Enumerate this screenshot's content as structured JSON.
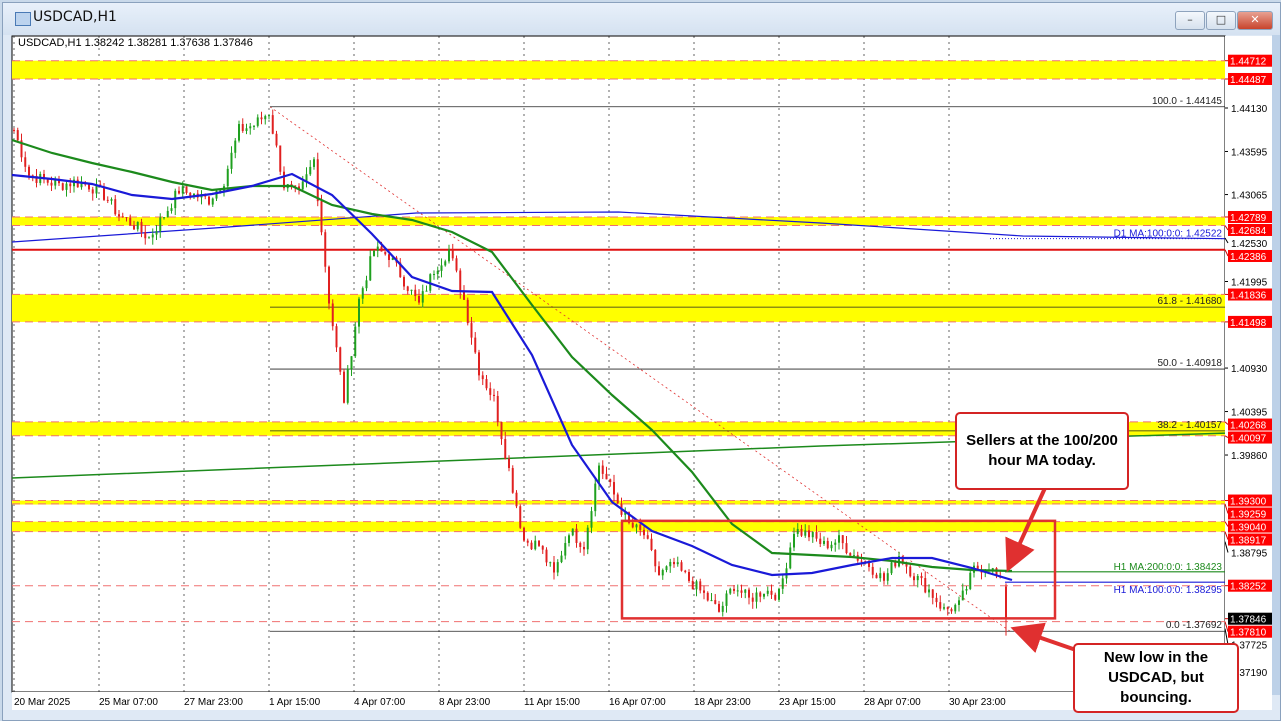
{
  "window": {
    "title": "USDCAD,H1",
    "minimize_icon": "minimize-icon",
    "maximize_icon": "maximize-icon",
    "close_icon": "close-icon"
  },
  "chart_data": {
    "type": "candlestick",
    "symbol_header": "USDCAD,H1  1.38242 1.38281 1.37638 1.37846",
    "price_series_approx": [
      1.4386,
      1.4331,
      1.4324,
      1.4318,
      1.4322,
      1.4318,
      1.4306,
      1.4281,
      1.4269,
      1.4253,
      1.4281,
      1.4312,
      1.4306,
      1.43,
      1.4324,
      1.4386,
      1.4392,
      1.4408,
      1.4318,
      1.4306,
      1.4349,
      1.4177,
      1.4054,
      1.4177,
      1.4238,
      1.4232,
      1.4201,
      1.4171,
      1.4214,
      1.4238,
      1.4177,
      1.4091,
      1.4054,
      1.3968,
      1.3881,
      1.3875,
      1.3838,
      1.3894,
      1.3875,
      1.3974,
      1.3937,
      1.39,
      1.3888,
      1.3838,
      1.3851,
      1.3832,
      1.3814,
      1.3793,
      1.3826,
      1.3808,
      1.382,
      1.3814,
      1.3894,
      1.3888,
      1.3875,
      1.3881,
      1.3863,
      1.3851,
      1.3832,
      1.3863,
      1.3838,
      1.382,
      1.3795,
      1.3801,
      1.3845,
      1.3851,
      1.382
    ],
    "last_bar": {
      "open": 1.38242,
      "high": 1.38281,
      "low": 1.37638,
      "close": 1.37846
    },
    "ma100_h1": [
      1.43306,
      1.43256,
      1.43195,
      1.4306,
      1.4301,
      1.43072,
      1.4317,
      1.43318,
      1.4306,
      1.4258,
      1.42051,
      1.41878,
      1.41866,
      1.41091,
      1.39983,
      1.39282,
      1.38925,
      1.3874,
      1.38507,
      1.38384,
      1.38408,
      1.38507,
      1.38593,
      1.38593,
      1.3847,
      1.38322
    ],
    "ma200_h1": [
      1.43736,
      1.43576,
      1.43453,
      1.43342,
      1.43219,
      1.43121,
      1.4317,
      1.4317,
      1.42936,
      1.42826,
      1.42752,
      1.42604,
      1.42358,
      1.41706,
      1.41066,
      1.40599,
      1.40168,
      1.39651,
      1.39011,
      1.38655,
      1.3863,
      1.38605,
      1.38556,
      1.38482,
      1.38445,
      1.38433
    ],
    "ma100_d1": [
      1.42481,
      1.42653,
      1.42838,
      1.4285,
      1.42715,
      1.42555,
      1.42522
    ],
    "ma200_d1": [
      1.39577,
      1.39774,
      1.39971,
      1.4013
    ],
    "ylim": [
      1.369,
      1.45
    ],
    "y_ticks": [
      "1.44130",
      "1.43595",
      "1.43065",
      "1.42530",
      "1.41995",
      "1.40930",
      "1.40395",
      "1.39860",
      "1.38795",
      "1.37725",
      "1.37190"
    ],
    "x_ticks": [
      "20 Mar 2025",
      "25 Mar 07:00",
      "27 Mar 23:00",
      "1 Apr 15:00",
      "4 Apr 07:00",
      "8 Apr 23:00",
      "11 Apr 15:00",
      "16 Apr 07:00",
      "18 Apr 23:00",
      "23 Apr 15:00",
      "28 Apr 07:00",
      "30 Apr 23:00"
    ],
    "zones": [
      {
        "top": 1.44712,
        "bottom": 1.44487
      },
      {
        "top": 1.42789,
        "bottom": 1.42684
      },
      {
        "top": 1.41836,
        "bottom": 1.41498
      },
      {
        "top": 1.40268,
        "bottom": 1.40097
      },
      {
        "top": 1.393,
        "bottom": 1.39259
      },
      {
        "top": 1.3904,
        "bottom": 1.38917
      }
    ],
    "dashed_levels": [
      1.38252,
      1.3781
    ],
    "solid_red_level": 1.42386,
    "price_badges": [
      "1.44712",
      "1.44487",
      "1.42789",
      "1.42684",
      "1.42386",
      "1.41836",
      "1.41498",
      "1.40268",
      "1.40097",
      "1.39300",
      "1.39259",
      "1.39040",
      "1.38917",
      "1.38252",
      "1.37810"
    ],
    "current_price": "1.37846",
    "fib_levels": [
      {
        "price": 1.44145,
        "label": "100.0 - 1.44145"
      },
      {
        "price": 1.4168,
        "label": "61.8 - 1.41680"
      },
      {
        "price": 1.40918,
        "label": "50.0 - 1.40918"
      },
      {
        "price": 1.40157,
        "label": "38.2 - 1.40157"
      },
      {
        "price": 1.37692,
        "label": "0.0 -1.37692"
      }
    ],
    "ma_labels": {
      "d1_ma100": "D1 MA:100:0:0: 1.42522",
      "h1_ma200": "H1 MA:200:0:0: 1.38423",
      "h1_ma100": "H1 MA:100:0:0: 1.38295"
    },
    "consolidation_box": {
      "top": 1.3905,
      "bottom": 1.3785
    },
    "colors": {
      "bull": "#1fa01f",
      "bear": "#e02020",
      "ma100": "#1a1ad8",
      "ma200": "#1c8a1c",
      "zone": "#ffff00",
      "badge": "#ff0000",
      "annotation": "#e03030"
    }
  },
  "annotations": {
    "sellers": "Sellers at the 100/200 hour MA today.",
    "new_low": "New low in the USDCAD, but bouncing."
  }
}
